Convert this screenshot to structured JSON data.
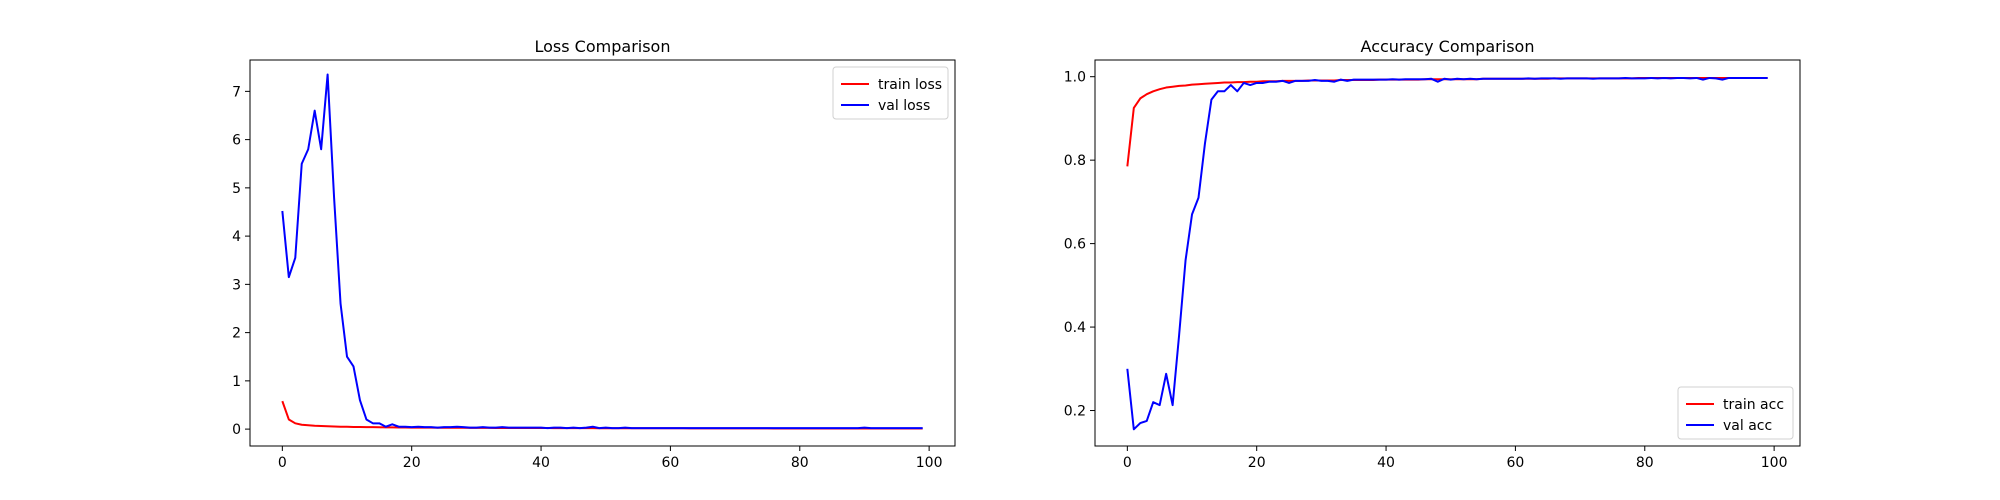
{
  "chart_data": [
    {
      "type": "line",
      "title": "Loss Comparison",
      "xlabel": "",
      "ylabel": "",
      "xlim": [
        -5,
        104
      ],
      "ylim": [
        -0.35,
        7.65
      ],
      "xticks": [
        0,
        20,
        40,
        60,
        80,
        100
      ],
      "yticks": [
        0,
        1,
        2,
        3,
        4,
        5,
        6,
        7
      ],
      "grid": false,
      "legend_position": "top-right",
      "series": [
        {
          "name": "train loss",
          "color": "#ff0000",
          "x": [
            0,
            1,
            2,
            3,
            4,
            5,
            6,
            7,
            8,
            9,
            10,
            11,
            12,
            13,
            14,
            15,
            16,
            17,
            18,
            19,
            20,
            21,
            22,
            23,
            24,
            25,
            26,
            27,
            28,
            29,
            30,
            31,
            32,
            33,
            34,
            35,
            36,
            37,
            38,
            39,
            40,
            41,
            42,
            43,
            44,
            45,
            46,
            47,
            48,
            49,
            50,
            51,
            52,
            53,
            54,
            55,
            56,
            57,
            58,
            59,
            60,
            61,
            62,
            63,
            64,
            65,
            66,
            67,
            68,
            69,
            70,
            71,
            72,
            73,
            74,
            75,
            76,
            77,
            78,
            79,
            80,
            81,
            82,
            83,
            84,
            85,
            86,
            87,
            88,
            89,
            90,
            91,
            92,
            93,
            94,
            95,
            96,
            97,
            98,
            99
          ],
          "y": [
            0.58,
            0.2,
            0.12,
            0.09,
            0.08,
            0.07,
            0.065,
            0.06,
            0.055,
            0.05,
            0.048,
            0.045,
            0.043,
            0.04,
            0.04,
            0.038,
            0.036,
            0.035,
            0.034,
            0.033,
            0.032,
            0.031,
            0.03,
            0.03,
            0.029,
            0.028,
            0.028,
            0.027,
            0.027,
            0.026,
            0.026,
            0.025,
            0.025,
            0.024,
            0.024,
            0.024,
            0.023,
            0.023,
            0.023,
            0.022,
            0.022,
            0.022,
            0.021,
            0.021,
            0.021,
            0.02,
            0.02,
            0.02,
            0.02,
            0.019,
            0.019,
            0.019,
            0.019,
            0.018,
            0.018,
            0.018,
            0.018,
            0.018,
            0.017,
            0.017,
            0.017,
            0.017,
            0.017,
            0.016,
            0.016,
            0.016,
            0.016,
            0.016,
            0.016,
            0.015,
            0.015,
            0.015,
            0.015,
            0.015,
            0.015,
            0.015,
            0.014,
            0.014,
            0.014,
            0.014,
            0.014,
            0.014,
            0.014,
            0.013,
            0.013,
            0.013,
            0.013,
            0.013,
            0.013,
            0.013,
            0.013,
            0.012,
            0.012,
            0.012,
            0.012,
            0.012,
            0.012,
            0.012,
            0.012,
            0.012
          ]
        },
        {
          "name": "val loss",
          "color": "#0000ff",
          "x": [
            0,
            1,
            2,
            3,
            4,
            5,
            6,
            7,
            8,
            9,
            10,
            11,
            12,
            13,
            14,
            15,
            16,
            17,
            18,
            19,
            20,
            21,
            22,
            23,
            24,
            25,
            26,
            27,
            28,
            29,
            30,
            31,
            32,
            33,
            34,
            35,
            36,
            37,
            38,
            39,
            40,
            41,
            42,
            43,
            44,
            45,
            46,
            47,
            48,
            49,
            50,
            51,
            52,
            53,
            54,
            55,
            56,
            57,
            58,
            59,
            60,
            61,
            62,
            63,
            64,
            65,
            66,
            67,
            68,
            69,
            70,
            71,
            72,
            73,
            74,
            75,
            76,
            77,
            78,
            79,
            80,
            81,
            82,
            83,
            84,
            85,
            86,
            87,
            88,
            89,
            90,
            91,
            92,
            93,
            94,
            95,
            96,
            97,
            98,
            99
          ],
          "y": [
            4.52,
            3.15,
            3.55,
            5.5,
            5.8,
            6.6,
            5.8,
            7.35,
            4.8,
            2.6,
            1.5,
            1.3,
            0.6,
            0.2,
            0.12,
            0.12,
            0.05,
            0.1,
            0.05,
            0.05,
            0.04,
            0.05,
            0.04,
            0.04,
            0.03,
            0.04,
            0.04,
            0.05,
            0.04,
            0.03,
            0.03,
            0.04,
            0.03,
            0.03,
            0.04,
            0.03,
            0.03,
            0.03,
            0.03,
            0.03,
            0.03,
            0.02,
            0.03,
            0.03,
            0.02,
            0.03,
            0.02,
            0.03,
            0.05,
            0.02,
            0.03,
            0.02,
            0.02,
            0.03,
            0.02,
            0.02,
            0.02,
            0.02,
            0.02,
            0.02,
            0.02,
            0.02,
            0.02,
            0.02,
            0.02,
            0.02,
            0.02,
            0.02,
            0.02,
            0.02,
            0.02,
            0.02,
            0.02,
            0.02,
            0.02,
            0.02,
            0.02,
            0.02,
            0.02,
            0.02,
            0.02,
            0.02,
            0.02,
            0.02,
            0.02,
            0.02,
            0.02,
            0.02,
            0.02,
            0.02,
            0.03,
            0.02,
            0.02,
            0.02,
            0.02,
            0.02,
            0.02,
            0.02,
            0.02,
            0.02
          ]
        }
      ]
    },
    {
      "type": "line",
      "title": "Accuracy Comparison",
      "xlabel": "",
      "ylabel": "",
      "xlim": [
        -5,
        104
      ],
      "ylim": [
        0.115,
        1.04
      ],
      "xticks": [
        0,
        20,
        40,
        60,
        80,
        100
      ],
      "yticks": [
        0.2,
        0.4,
        0.6,
        0.8,
        1.0
      ],
      "ytick_labels": [
        "0.2",
        "0.4",
        "0.6",
        "0.8",
        "1.0"
      ],
      "grid": false,
      "legend_position": "bottom-right",
      "series": [
        {
          "name": "train acc",
          "color": "#ff0000",
          "x": [
            0,
            1,
            2,
            3,
            4,
            5,
            6,
            7,
            8,
            9,
            10,
            11,
            12,
            13,
            14,
            15,
            16,
            17,
            18,
            19,
            20,
            21,
            22,
            23,
            24,
            25,
            26,
            27,
            28,
            29,
            30,
            31,
            32,
            33,
            34,
            35,
            36,
            37,
            38,
            39,
            40,
            41,
            42,
            43,
            44,
            45,
            46,
            47,
            48,
            49,
            50,
            51,
            52,
            53,
            54,
            55,
            56,
            57,
            58,
            59,
            60,
            61,
            62,
            63,
            64,
            65,
            66,
            67,
            68,
            69,
            70,
            71,
            72,
            73,
            74,
            75,
            76,
            77,
            78,
            79,
            80,
            81,
            82,
            83,
            84,
            85,
            86,
            87,
            88,
            89,
            90,
            91,
            92,
            93,
            94,
            95,
            96,
            97,
            98,
            99
          ],
          "y": [
            0.785,
            0.925,
            0.948,
            0.958,
            0.965,
            0.97,
            0.974,
            0.976,
            0.978,
            0.979,
            0.981,
            0.982,
            0.983,
            0.984,
            0.985,
            0.986,
            0.986,
            0.987,
            0.987,
            0.988,
            0.988,
            0.989,
            0.989,
            0.989,
            0.99,
            0.99,
            0.99,
            0.99,
            0.991,
            0.991,
            0.991,
            0.991,
            0.991,
            0.992,
            0.992,
            0.992,
            0.992,
            0.992,
            0.992,
            0.993,
            0.993,
            0.993,
            0.993,
            0.993,
            0.993,
            0.993,
            0.994,
            0.994,
            0.994,
            0.994,
            0.994,
            0.994,
            0.994,
            0.994,
            0.994,
            0.995,
            0.995,
            0.995,
            0.995,
            0.995,
            0.995,
            0.995,
            0.995,
            0.995,
            0.995,
            0.995,
            0.996,
            0.996,
            0.996,
            0.996,
            0.996,
            0.996,
            0.996,
            0.996,
            0.996,
            0.996,
            0.996,
            0.996,
            0.996,
            0.997,
            0.997,
            0.997,
            0.997,
            0.997,
            0.997,
            0.997,
            0.997,
            0.997,
            0.997,
            0.997,
            0.997,
            0.997,
            0.997,
            0.997,
            0.997,
            0.997,
            0.997,
            0.997,
            0.997,
            0.997
          ]
        },
        {
          "name": "val acc",
          "color": "#0000ff",
          "x": [
            0,
            1,
            2,
            3,
            4,
            5,
            6,
            7,
            8,
            9,
            10,
            11,
            12,
            13,
            14,
            15,
            16,
            17,
            18,
            19,
            20,
            21,
            22,
            23,
            24,
            25,
            26,
            27,
            28,
            29,
            30,
            31,
            32,
            33,
            34,
            35,
            36,
            37,
            38,
            39,
            40,
            41,
            42,
            43,
            44,
            45,
            46,
            47,
            48,
            49,
            50,
            51,
            52,
            53,
            54,
            55,
            56,
            57,
            58,
            59,
            60,
            61,
            62,
            63,
            64,
            65,
            66,
            67,
            68,
            69,
            70,
            71,
            72,
            73,
            74,
            75,
            76,
            77,
            78,
            79,
            80,
            81,
            82,
            83,
            84,
            85,
            86,
            87,
            88,
            89,
            90,
            91,
            92,
            93,
            94,
            95,
            96,
            97,
            98,
            99
          ],
          "y": [
            0.3,
            0.155,
            0.17,
            0.175,
            0.22,
            0.213,
            0.288,
            0.213,
            0.38,
            0.56,
            0.67,
            0.71,
            0.84,
            0.945,
            0.965,
            0.965,
            0.98,
            0.965,
            0.985,
            0.98,
            0.985,
            0.985,
            0.988,
            0.988,
            0.99,
            0.985,
            0.99,
            0.99,
            0.99,
            0.992,
            0.99,
            0.99,
            0.988,
            0.993,
            0.99,
            0.993,
            0.993,
            0.993,
            0.993,
            0.993,
            0.993,
            0.994,
            0.993,
            0.994,
            0.994,
            0.994,
            0.994,
            0.995,
            0.988,
            0.995,
            0.993,
            0.995,
            0.994,
            0.995,
            0.994,
            0.995,
            0.995,
            0.995,
            0.995,
            0.995,
            0.995,
            0.995,
            0.996,
            0.995,
            0.996,
            0.996,
            0.996,
            0.995,
            0.996,
            0.996,
            0.996,
            0.996,
            0.995,
            0.996,
            0.996,
            0.996,
            0.996,
            0.997,
            0.996,
            0.996,
            0.996,
            0.997,
            0.996,
            0.997,
            0.996,
            0.997,
            0.997,
            0.996,
            0.997,
            0.993,
            0.997,
            0.996,
            0.993,
            0.997,
            0.997,
            0.997,
            0.997,
            0.997,
            0.997,
            0.997
          ]
        }
      ]
    }
  ]
}
